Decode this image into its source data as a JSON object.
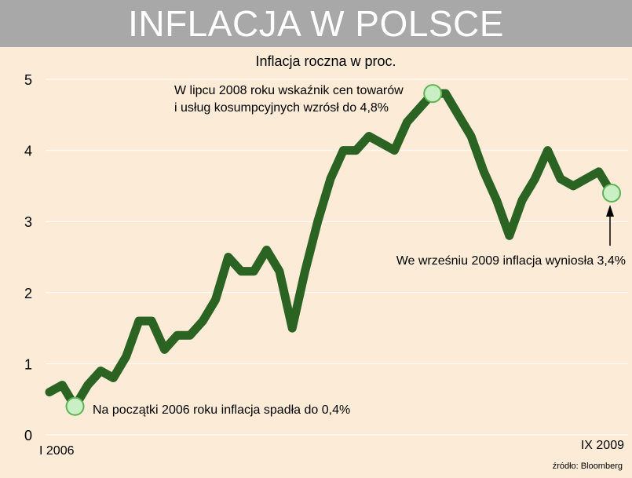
{
  "header": {
    "title": "INFLACJA W POLSCE"
  },
  "chart_data": {
    "type": "line",
    "title": "Inflacja roczna w proc.",
    "xlabel": "",
    "ylabel": "",
    "ylim": [
      0,
      5
    ],
    "yticks": [
      0,
      1,
      2,
      3,
      4,
      5
    ],
    "x_tick_labels": [
      "I 2006",
      "IX 2009"
    ],
    "grid": "horizontal",
    "legend": "none",
    "series": [
      {
        "values": [
          0.6,
          0.7,
          0.4,
          0.7,
          0.9,
          0.8,
          1.1,
          1.6,
          1.6,
          1.2,
          1.4,
          1.4,
          1.6,
          1.9,
          2.5,
          2.3,
          2.3,
          2.6,
          2.3,
          1.5,
          2.3,
          3.0,
          3.6,
          4.0,
          4.0,
          4.2,
          4.1,
          4.0,
          4.4,
          4.6,
          4.8,
          4.8,
          4.5,
          4.2,
          3.7,
          3.3,
          2.8,
          3.3,
          3.6,
          4.0,
          3.6,
          3.5,
          3.6,
          3.7,
          3.4
        ]
      }
    ],
    "line_color": "#2b6323",
    "marker_color": "#c9efc4",
    "grid_color": "#ffffff",
    "annotations": [
      {
        "lines": [
          "W lipcu 2008 roku wskaźnik cen towarów",
          "i usług kosumpcyjnych wzrósł do 4,8%"
        ]
      },
      {
        "lines": [
          "Na początki 2006 roku inflacja spadła do 0,4%"
        ]
      },
      {
        "lines": [
          "We wrześniu 2009 inflacja wyniosła 3,4%"
        ]
      }
    ],
    "source": "źródło: Bloomberg"
  }
}
